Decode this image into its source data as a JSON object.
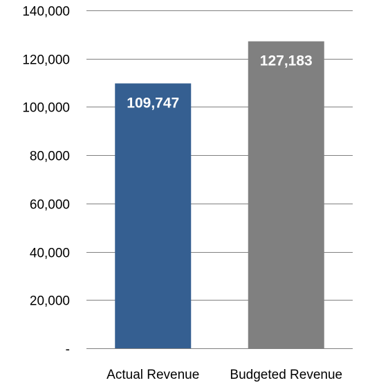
{
  "chart_data": {
    "type": "bar",
    "categories": [
      "Actual Revenue",
      "Budgeted Revenue"
    ],
    "values": [
      109747,
      127183
    ],
    "data_labels": [
      "109,747",
      "127,183"
    ],
    "bar_colors": [
      "#355f91",
      "#808080"
    ],
    "ylim": [
      0,
      140000
    ],
    "yticks": [
      0,
      20000,
      40000,
      60000,
      80000,
      100000,
      120000,
      140000
    ],
    "ytick_labels": [
      "-",
      "20,000",
      "40,000",
      "60,000",
      "80,000",
      "100,000",
      "120,000",
      "140,000"
    ],
    "grid": true,
    "legend": "none",
    "title": "",
    "xlabel": "",
    "ylabel": ""
  }
}
